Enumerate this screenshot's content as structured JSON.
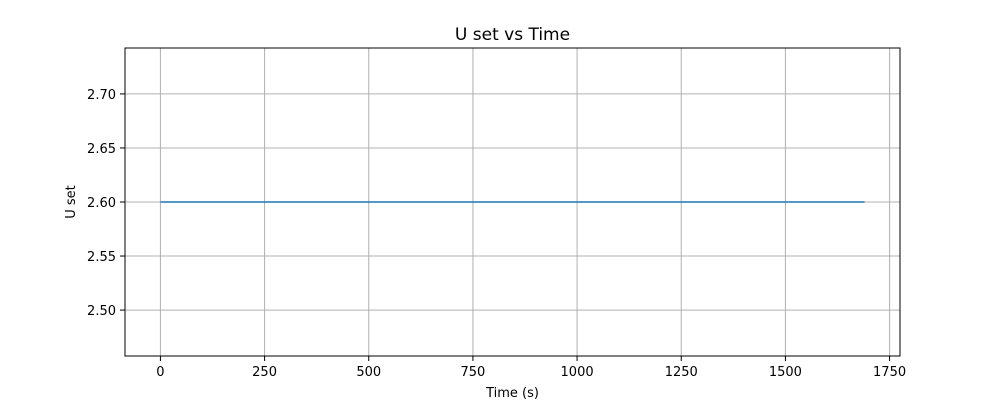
{
  "chart_data": {
    "type": "line",
    "title": "U set vs Time",
    "xlabel": "Time (s)",
    "ylabel": "U set",
    "xlim": [
      -85,
      1775
    ],
    "ylim": [
      2.4575,
      2.7425
    ],
    "xticks": [
      0,
      250,
      500,
      750,
      1000,
      1250,
      1500,
      1750
    ],
    "xtick_labels": [
      "0",
      "250",
      "500",
      "750",
      "1000",
      "1250",
      "1500",
      "1750"
    ],
    "yticks": [
      2.5,
      2.55,
      2.6,
      2.65,
      2.7
    ],
    "ytick_labels": [
      "2.50",
      "2.55",
      "2.60",
      "2.65",
      "2.70"
    ],
    "grid": true,
    "legend": "none",
    "series": [
      {
        "color": "#1f77b4",
        "x": [
          0,
          1690
        ],
        "y": [
          2.6,
          2.6
        ]
      }
    ]
  }
}
